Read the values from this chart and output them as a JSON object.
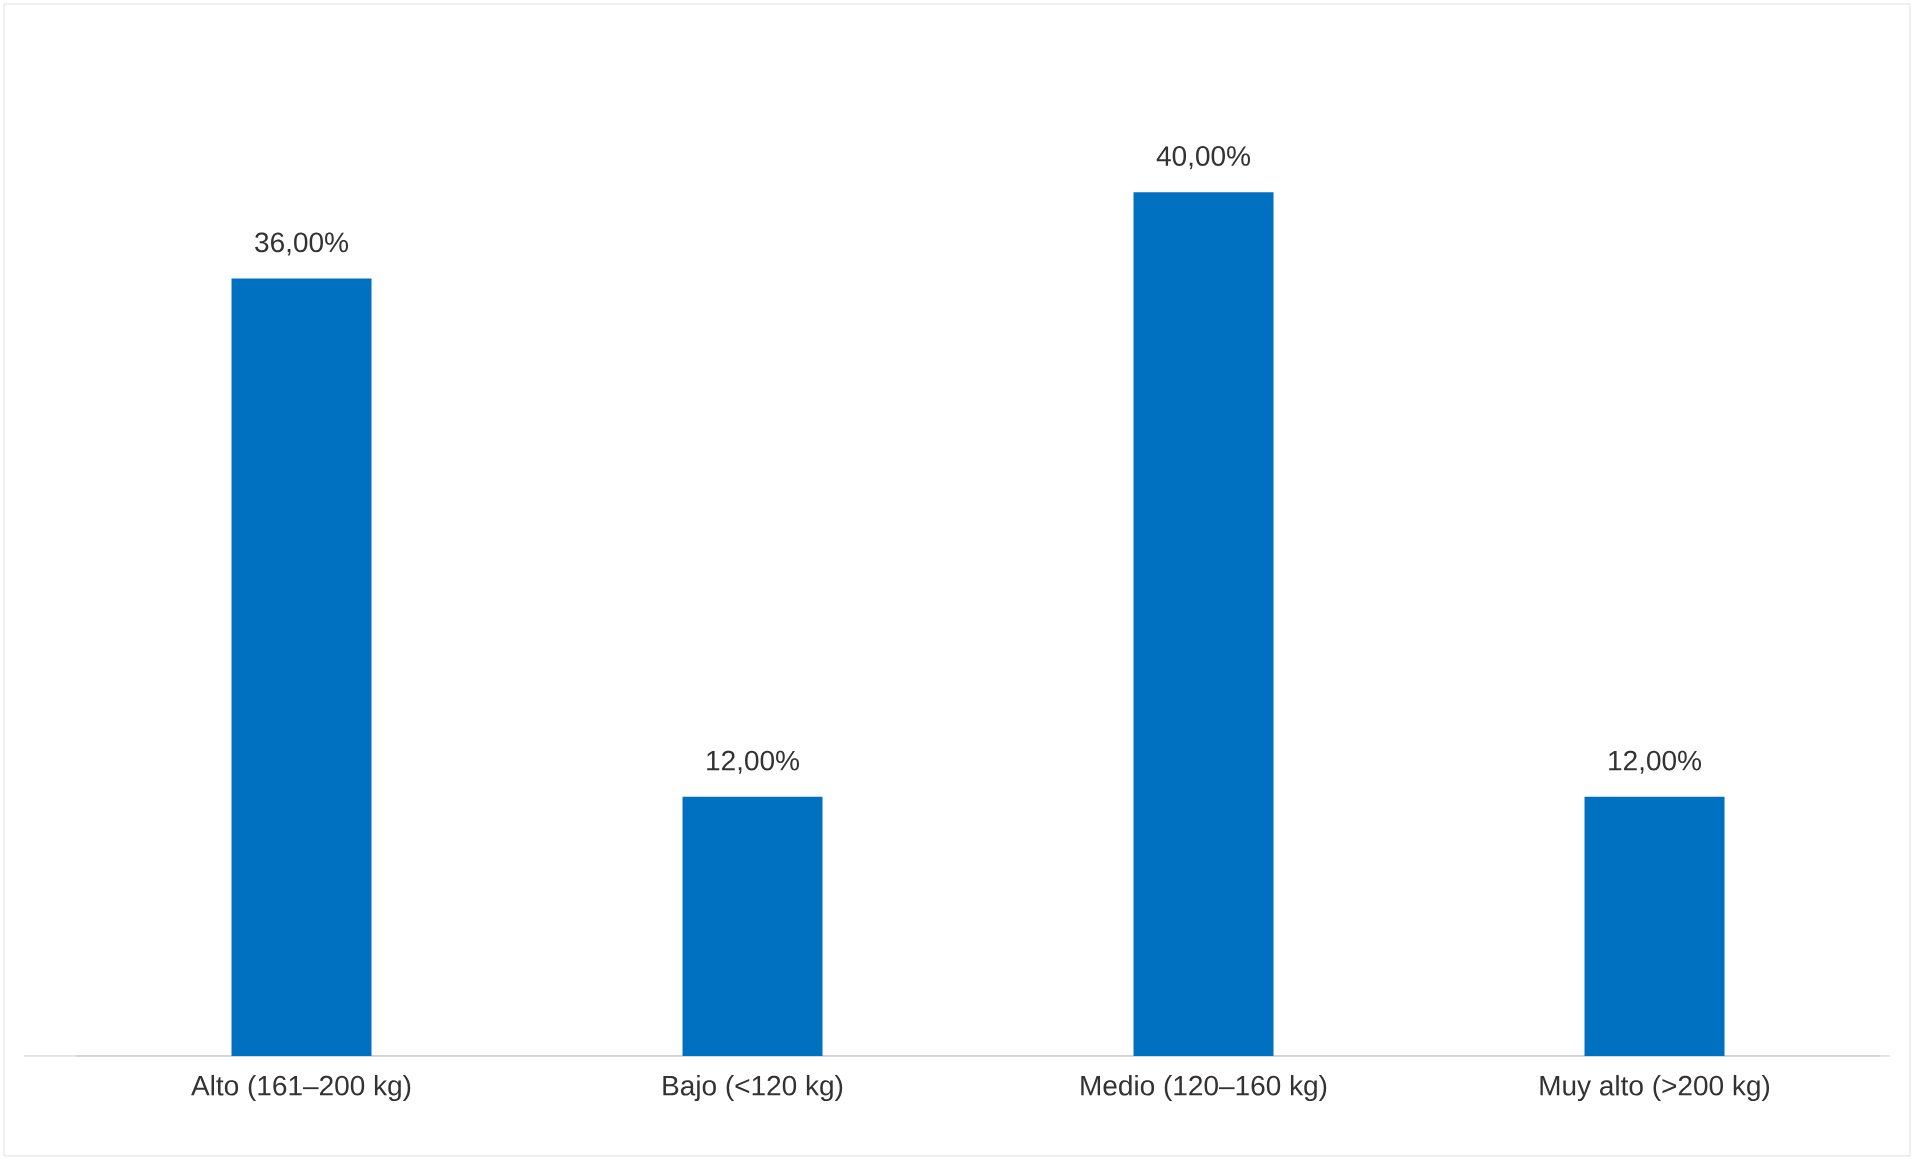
{
  "chart_data": {
    "type": "bar",
    "categories": [
      "Alto (161–200 kg)",
      "Bajo (<120 kg)",
      "Medio (120–160 kg)",
      "Muy alto (>200 kg)"
    ],
    "values": [
      36,
      12,
      40,
      12
    ],
    "value_labels": [
      "36,00%",
      "12,00%",
      "40,00%",
      "12,00%"
    ],
    "color": "#0070c0"
  }
}
